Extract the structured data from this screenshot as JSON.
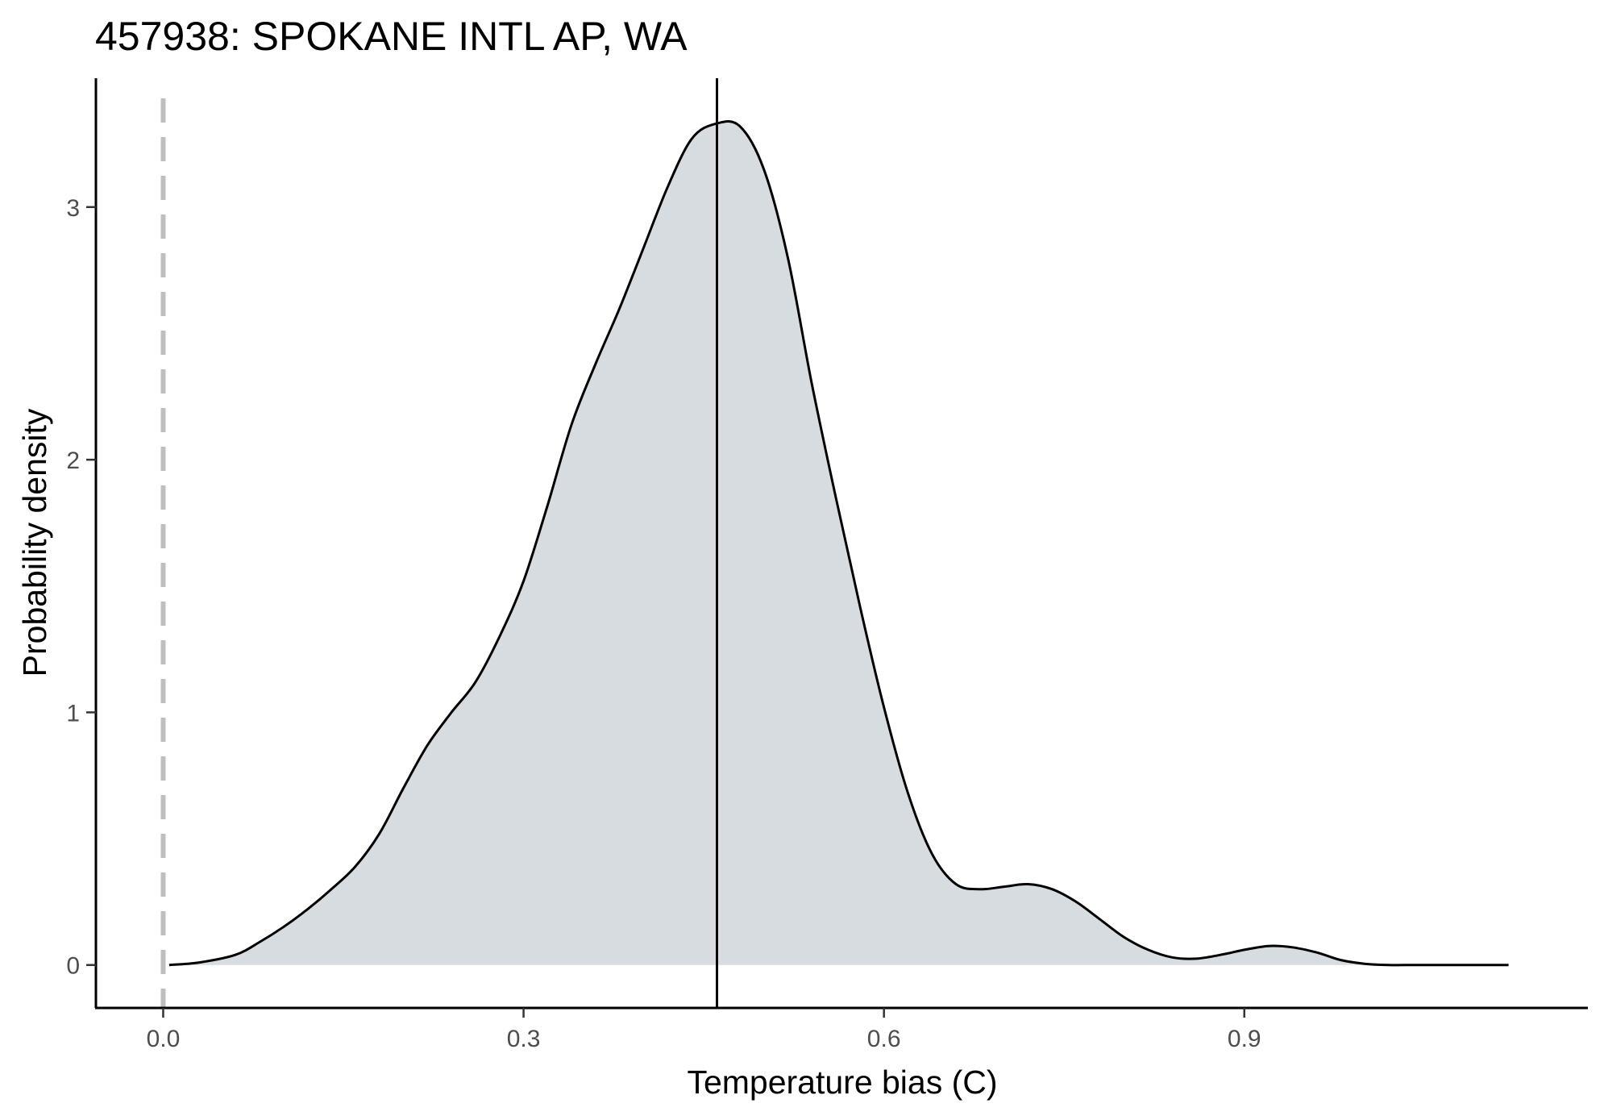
{
  "chart_data": {
    "type": "area",
    "title": "457938: SPOKANE INTL AP, WA",
    "xlabel": "Temperature bias (C)",
    "ylabel": "Probability density",
    "xlim": [
      -0.056,
      1.186
    ],
    "ylim": [
      -0.17,
      3.51
    ],
    "x_ticks": [
      0.0,
      0.3,
      0.6,
      0.9
    ],
    "x_tick_labels": [
      "0.0",
      "0.3",
      "0.6",
      "0.9"
    ],
    "y_ticks": [
      0,
      1,
      2,
      3
    ],
    "y_tick_labels": [
      "0",
      "1",
      "2",
      "3"
    ],
    "grid": false,
    "legend": "none",
    "colors": {
      "fill": "#d6dcdf",
      "line": "#000000",
      "zero_line": "#bebebe"
    },
    "reference_lines": [
      {
        "x": 0.0,
        "style": "dashed",
        "color": "#bebebe"
      },
      {
        "x": 0.461,
        "style": "solid",
        "color": "#000000"
      }
    ],
    "series": [
      {
        "x": [
          0.005,
          0.03,
          0.06,
          0.08,
          0.1,
          0.12,
          0.14,
          0.16,
          0.18,
          0.2,
          0.22,
          0.24,
          0.26,
          0.28,
          0.3,
          0.32,
          0.34,
          0.36,
          0.38,
          0.4,
          0.42,
          0.44,
          0.46,
          0.48,
          0.5,
          0.52,
          0.54,
          0.56,
          0.58,
          0.6,
          0.62,
          0.64,
          0.66,
          0.68,
          0.7,
          0.72,
          0.74,
          0.76,
          0.78,
          0.8,
          0.82,
          0.84,
          0.86,
          0.88,
          0.9,
          0.92,
          0.94,
          0.96,
          0.98,
          1.0,
          1.02,
          1.04,
          1.06,
          1.08,
          1.1,
          1.12
        ],
        "y": [
          0.0,
          0.01,
          0.04,
          0.09,
          0.15,
          0.22,
          0.3,
          0.39,
          0.52,
          0.7,
          0.87,
          1.0,
          1.12,
          1.3,
          1.52,
          1.82,
          2.14,
          2.38,
          2.6,
          2.84,
          3.08,
          3.27,
          3.33,
          3.32,
          3.15,
          2.8,
          2.3,
          1.85,
          1.42,
          1.02,
          0.68,
          0.44,
          0.32,
          0.3,
          0.31,
          0.32,
          0.3,
          0.25,
          0.18,
          0.11,
          0.06,
          0.03,
          0.025,
          0.04,
          0.06,
          0.075,
          0.07,
          0.05,
          0.02,
          0.005,
          0.0,
          0.0,
          0.0,
          0.0,
          0.0,
          0.0
        ]
      }
    ]
  }
}
